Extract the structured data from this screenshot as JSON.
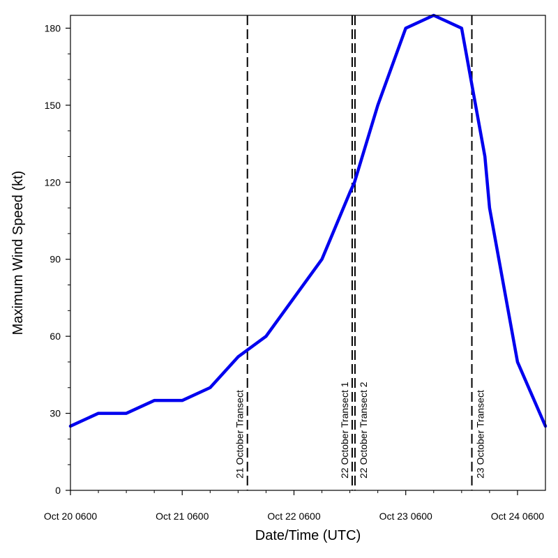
{
  "chart_data": {
    "type": "line",
    "xlabel": "Date/Time (UTC)",
    "ylabel": "Maximum Wind Speed (kt)",
    "x_units": "hours since Oct 20 0600 UTC",
    "x_ticks": [
      {
        "value": 0,
        "label": "Oct 20 0600"
      },
      {
        "value": 24,
        "label": "Oct 21 0600"
      },
      {
        "value": 48,
        "label": "Oct 22 0600"
      },
      {
        "value": 72,
        "label": "Oct 23 0600"
      },
      {
        "value": 96,
        "label": "Oct 24 0600"
      }
    ],
    "xlim": [
      0,
      102
    ],
    "y_ticks": [
      0,
      30,
      60,
      90,
      120,
      150,
      180
    ],
    "ylim": [
      0,
      185
    ],
    "grid": false,
    "series": [
      {
        "name": "",
        "color": "#0000ee",
        "x": [
          0,
          6,
          12,
          18,
          24,
          30,
          36,
          42,
          48,
          54,
          60,
          61,
          66,
          72,
          78,
          84,
          89,
          90,
          96,
          102
        ],
        "y": [
          25,
          30,
          30,
          35,
          35,
          40,
          52,
          60,
          75,
          90,
          116,
          120,
          150,
          180,
          185,
          180,
          130,
          110,
          50,
          25
        ]
      }
    ],
    "annotations": [
      {
        "x": 38,
        "label": "21 October Transect",
        "side": "left"
      },
      {
        "x": 60.5,
        "label": "22 October Transect 1",
        "side": "left"
      },
      {
        "x": 61.1,
        "label": "22 October Transect 2",
        "side": "right"
      },
      {
        "x": 86.2,
        "label": "23 October Transect",
        "side": "right"
      }
    ]
  }
}
